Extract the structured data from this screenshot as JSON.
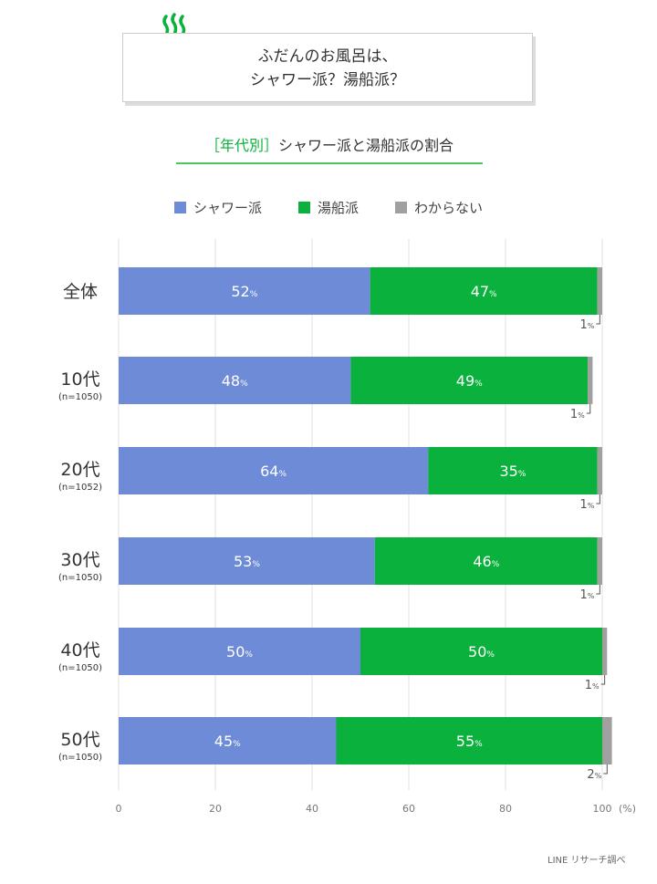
{
  "header": {
    "title_line1": "ふだんのお風呂は、",
    "title_line2": "シャワー派？湯船派？",
    "subtitle_bracket": "［年代別］",
    "subtitle_text": "シャワー派と湯船派の割合"
  },
  "source": "LINE リサーチ調べ",
  "chart_data": {
    "type": "bar",
    "orientation": "horizontal",
    "stacked": true,
    "categories": [
      "全体",
      "10代",
      "20代",
      "30代",
      "40代",
      "50代"
    ],
    "category_notes": [
      "",
      "(n=1050)",
      "(n=1052)",
      "(n=1050)",
      "(n=1050)",
      "(n=1050)"
    ],
    "series": [
      {
        "name": "シャワー派",
        "color": "#6d8bd7",
        "values": [
          52,
          48,
          64,
          53,
          50,
          45
        ]
      },
      {
        "name": "湯船派",
        "color": "#0ab13c",
        "values": [
          47,
          49,
          35,
          46,
          50,
          55
        ]
      },
      {
        "name": "わからない",
        "color": "#a0a0a0",
        "values": [
          1,
          1,
          1,
          1,
          1,
          2
        ]
      }
    ],
    "xlim": [
      0,
      100
    ],
    "xticks": [
      0,
      20,
      40,
      60,
      80,
      100
    ],
    "xunit": "(%)",
    "value_suffix": "%",
    "grid": true,
    "legend": "top"
  }
}
